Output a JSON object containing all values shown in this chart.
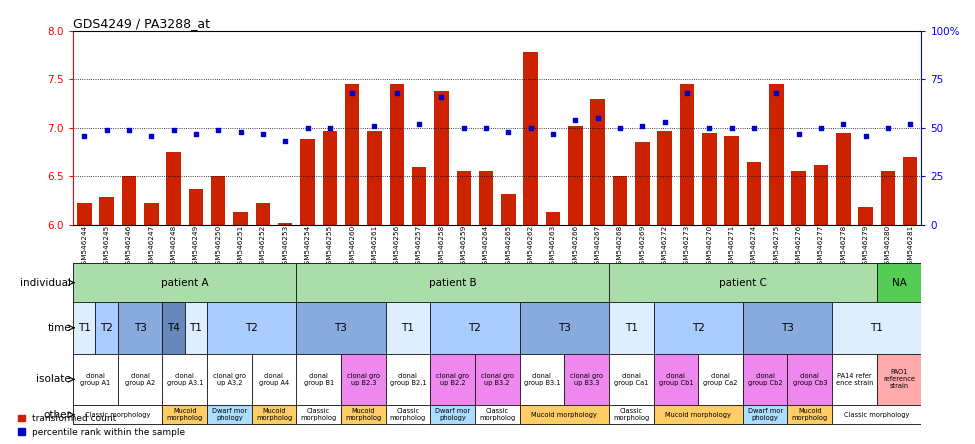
{
  "title": "GDS4249 / PA3288_at",
  "samples": [
    "GSM546244",
    "GSM546245",
    "GSM546246",
    "GSM546247",
    "GSM546248",
    "GSM546249",
    "GSM546250",
    "GSM546251",
    "GSM546252",
    "GSM546253",
    "GSM546254",
    "GSM546255",
    "GSM546260",
    "GSM546261",
    "GSM546256",
    "GSM546257",
    "GSM546258",
    "GSM546259",
    "GSM546264",
    "GSM546265",
    "GSM546262",
    "GSM546263",
    "GSM546266",
    "GSM546267",
    "GSM546268",
    "GSM546269",
    "GSM546272",
    "GSM546273",
    "GSM546270",
    "GSM546271",
    "GSM546274",
    "GSM546275",
    "GSM546276",
    "GSM546277",
    "GSM546278",
    "GSM546279",
    "GSM546280",
    "GSM546281"
  ],
  "bar_values": [
    6.22,
    6.28,
    6.5,
    6.22,
    6.75,
    6.37,
    6.5,
    6.13,
    6.22,
    6.02,
    6.88,
    6.97,
    7.45,
    6.97,
    7.45,
    6.6,
    7.38,
    6.55,
    6.55,
    6.32,
    7.78,
    6.13,
    7.02,
    7.3,
    6.5,
    6.85,
    6.97,
    7.45,
    6.95,
    6.92,
    6.65,
    7.45,
    6.55,
    6.62,
    6.95,
    6.18,
    6.55,
    6.7
  ],
  "dot_values": [
    46,
    49,
    49,
    46,
    49,
    47,
    49,
    48,
    47,
    43,
    50,
    50,
    68,
    51,
    68,
    52,
    66,
    50,
    50,
    48,
    50,
    47,
    54,
    55,
    50,
    51,
    53,
    68,
    50,
    50,
    50,
    68,
    47,
    50,
    52,
    46,
    50,
    52
  ],
  "ylim_left": [
    6.0,
    8.0
  ],
  "ylim_right": [
    0,
    100
  ],
  "yticks_left": [
    6.0,
    6.5,
    7.0,
    7.5,
    8.0
  ],
  "yticks_right": [
    0,
    25,
    50,
    75,
    100
  ],
  "bar_color": "#CC2200",
  "dot_color": "#0000CC",
  "background_color": "#ffffff",
  "ind_groups": [
    {
      "label": "patient A",
      "start": 0,
      "end": 9,
      "color": "#AADDAA"
    },
    {
      "label": "patient B",
      "start": 10,
      "end": 23,
      "color": "#AADDAA"
    },
    {
      "label": "patient C",
      "start": 24,
      "end": 35,
      "color": "#AADDAA"
    },
    {
      "label": "NA",
      "start": 36,
      "end": 37,
      "color": "#55CC55"
    }
  ],
  "time_groups": [
    {
      "label": "T1",
      "start": 0,
      "end": 0,
      "color": "#DDEEFF"
    },
    {
      "label": "T2",
      "start": 1,
      "end": 1,
      "color": "#AACCFF"
    },
    {
      "label": "T3",
      "start": 2,
      "end": 3,
      "color": "#88AADD"
    },
    {
      "label": "T4",
      "start": 4,
      "end": 4,
      "color": "#6688BB"
    },
    {
      "label": "T1",
      "start": 5,
      "end": 5,
      "color": "#DDEEFF"
    },
    {
      "label": "T2",
      "start": 6,
      "end": 9,
      "color": "#AACCFF"
    },
    {
      "label": "T3",
      "start": 10,
      "end": 13,
      "color": "#88AADD"
    },
    {
      "label": "T1",
      "start": 14,
      "end": 15,
      "color": "#DDEEFF"
    },
    {
      "label": "T2",
      "start": 16,
      "end": 19,
      "color": "#AACCFF"
    },
    {
      "label": "T3",
      "start": 20,
      "end": 23,
      "color": "#88AADD"
    },
    {
      "label": "T1",
      "start": 24,
      "end": 25,
      "color": "#DDEEFF"
    },
    {
      "label": "T2",
      "start": 26,
      "end": 29,
      "color": "#AACCFF"
    },
    {
      "label": "T3",
      "start": 30,
      "end": 33,
      "color": "#88AADD"
    },
    {
      "label": "T1",
      "start": 34,
      "end": 37,
      "color": "#DDEEFF"
    }
  ],
  "iso_groups": [
    {
      "label": "clonal\ngroup A1",
      "start": 0,
      "end": 0,
      "color": "#FFFFFF"
    },
    {
      "label": "clonal\ngroup A2",
      "start": 1,
      "end": 1,
      "color": "#FFFFFF"
    },
    {
      "label": "clonal\ngroup A3.1",
      "start": 2,
      "end": 2,
      "color": "#FFFFFF"
    },
    {
      "label": "clonal gro\nup A3.2",
      "start": 3,
      "end": 3,
      "color": "#FFFFFF"
    },
    {
      "label": "clonal\ngroup A4",
      "start": 4,
      "end": 4,
      "color": "#FFFFFF"
    },
    {
      "label": "clonal\ngroup B1",
      "start": 5,
      "end": 5,
      "color": "#FFFFFF"
    },
    {
      "label": "clonal gro\nup B2.3",
      "start": 6,
      "end": 6,
      "color": "#EE88EE"
    },
    {
      "label": "clonal\ngroup B2.1",
      "start": 7,
      "end": 7,
      "color": "#FFFFFF"
    },
    {
      "label": "clonal gro\nup B2.2",
      "start": 8,
      "end": 8,
      "color": "#EE88EE"
    },
    {
      "label": "clonal gro\nup B3.2",
      "start": 9,
      "end": 9,
      "color": "#EE88EE"
    },
    {
      "label": "clonal\ngroup B3.1",
      "start": 10,
      "end": 10,
      "color": "#FFFFFF"
    },
    {
      "label": "clonal gro\nup B3.3",
      "start": 11,
      "end": 11,
      "color": "#EE88EE"
    },
    {
      "label": "clonal\ngroup Ca1",
      "start": 12,
      "end": 12,
      "color": "#FFFFFF"
    },
    {
      "label": "clonal\ngroup Cb1",
      "start": 13,
      "end": 13,
      "color": "#EE88EE"
    },
    {
      "label": "clonal\ngroup Ca2",
      "start": 14,
      "end": 14,
      "color": "#FFFFFF"
    },
    {
      "label": "clonal\ngroup Cb2",
      "start": 15,
      "end": 15,
      "color": "#EE88EE"
    },
    {
      "label": "clonal\ngroup Cb3",
      "start": 16,
      "end": 16,
      "color": "#EE88EE"
    },
    {
      "label": "PA14 refer\nence strain",
      "start": 17,
      "end": 17,
      "color": "#FFFFFF"
    },
    {
      "label": "PAO1\nreference\nstrain",
      "start": 18,
      "end": 18,
      "color": "#FFAAAA"
    }
  ],
  "other_groups": [
    {
      "label": "Classic morphology",
      "start": 0,
      "end": 1,
      "color": "#FFFFFF"
    },
    {
      "label": "Mucoid\nmorpholog",
      "start": 2,
      "end": 2,
      "color": "#FFCC66"
    },
    {
      "label": "Dwarf mor\nphology",
      "start": 3,
      "end": 3,
      "color": "#AADDFF"
    },
    {
      "label": "Mucoid\nmorpholog",
      "start": 4,
      "end": 4,
      "color": "#FFCC66"
    },
    {
      "label": "Classic\nmorpholog",
      "start": 5,
      "end": 5,
      "color": "#FFFFFF"
    },
    {
      "label": "Mucoid\nmorpholog",
      "start": 6,
      "end": 6,
      "color": "#FFCC66"
    },
    {
      "label": "Classic\nmorpholog",
      "start": 7,
      "end": 7,
      "color": "#FFFFFF"
    },
    {
      "label": "Dwarf mor\nphology",
      "start": 8,
      "end": 8,
      "color": "#AADDFF"
    },
    {
      "label": "Classic\nmorpholog",
      "start": 9,
      "end": 9,
      "color": "#FFFFFF"
    },
    {
      "label": "Mucoid morphology",
      "start": 10,
      "end": 11,
      "color": "#FFCC66"
    },
    {
      "label": "Classic\nmorpholog",
      "start": 12,
      "end": 12,
      "color": "#FFFFFF"
    },
    {
      "label": "Mucoid morphology",
      "start": 13,
      "end": 14,
      "color": "#FFCC66"
    },
    {
      "label": "Dwarf mor\nphology",
      "start": 15,
      "end": 15,
      "color": "#AADDFF"
    },
    {
      "label": "Mucoid\nmorpholog",
      "start": 16,
      "end": 16,
      "color": "#FFCC66"
    },
    {
      "label": "Classic morphology",
      "start": 17,
      "end": 18,
      "color": "#FFFFFF"
    }
  ],
  "legend_items": [
    {
      "label": "transformed count",
      "color": "#CC2200"
    },
    {
      "label": "percentile rank within the sample",
      "color": "#0000CC"
    }
  ]
}
